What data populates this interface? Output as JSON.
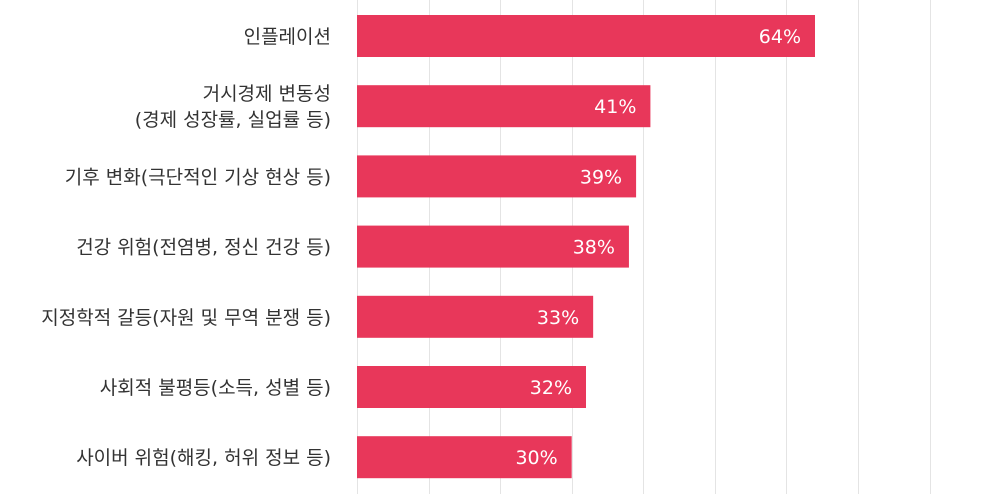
{
  "chart_data": {
    "type": "bar",
    "orientation": "horizontal",
    "categories": [
      [
        "인플레이션"
      ],
      [
        "거시경제 변동성",
        "(경제 성장률, 실업률 등)"
      ],
      [
        "기후 변화(극단적인 기상 현상 등)"
      ],
      [
        "건강 위험(전염병, 정신 건강 등)"
      ],
      [
        "지정학적 갈등(자원 및 무역 분쟁 등)"
      ],
      [
        "사회적 불평등(소득, 성별 등)"
      ],
      [
        "사이버 위험(해킹, 허위 정보 등)"
      ]
    ],
    "values": [
      64,
      41,
      39,
      38,
      33,
      32,
      30
    ],
    "value_labels": [
      "64%",
      "41%",
      "39%",
      "38%",
      "33%",
      "32%",
      "30%"
    ],
    "xlim": [
      0,
      90
    ],
    "grid": true,
    "bar_color": "#e8375a",
    "title": "",
    "xlabel": "",
    "ylabel": ""
  }
}
